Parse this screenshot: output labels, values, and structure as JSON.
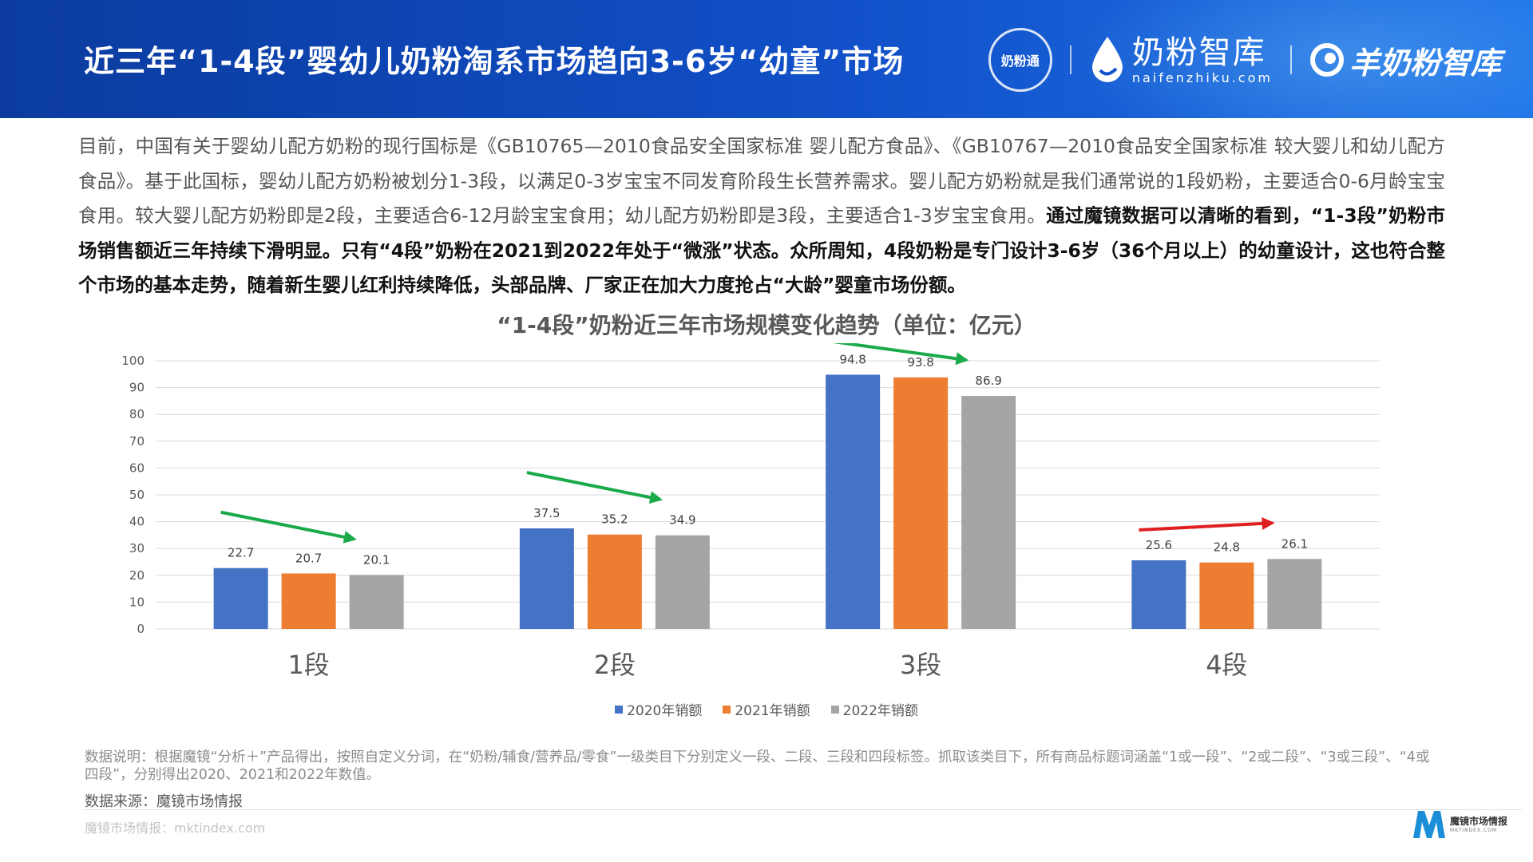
{
  "header": {
    "title": "近三年“1-4段”婴幼儿奶粉淘系市场趋向3-6岁“幼童”市场",
    "logo_seal_text": "奶粉通",
    "logo_brand_cn": "奶粉智库",
    "logo_brand_en": "naifenzhiku.com",
    "logo_sheep_text": "羊奶粉智库"
  },
  "intro": {
    "normal": "目前，中国有关于婴幼儿配方奶粉的现行国标是《GB10765—2010食品安全国家标准 婴儿配方食品》、《GB10767—2010食品安全国家标准 较大婴儿和幼儿配方食品》。基于此国标，婴幼儿配方奶粉被划分1-3段，以满足0-3岁宝宝不同发育阶段生长营养需求。婴儿配方奶粉就是我们通常说的1段奶粉，主要适合0-6月龄宝宝食用。较大婴儿配方奶粉即是2段，主要适合6-12月龄宝宝食用；幼儿配方奶粉即是3段，主要适合1-3岁宝宝食用。",
    "bold": "通过魔镜数据可以清晰的看到，“1-3段”奶粉市场销售额近三年持续下滑明显。只有“4段”奶粉在2021到2022年处于“微涨”状态。众所周知，4段奶粉是专门设计3-6岁（36个月以上）的幼童设计，这也符合整个市场的基本走势，随着新生婴儿红利持续降低，头部品牌、厂家正在加大力度抢占“大龄”婴童市场份额。"
  },
  "chart_data": {
    "type": "bar",
    "title": "“1-4段”奶粉近三年市场规模变化趋势（单位：亿元）",
    "categories": [
      "1段",
      "2段",
      "3段",
      "4段"
    ],
    "series": [
      {
        "name": "2020年销额",
        "values": [
          22.7,
          37.5,
          94.8,
          25.6
        ],
        "color": "#4472C4"
      },
      {
        "name": "2021年销额",
        "values": [
          20.7,
          35.2,
          93.8,
          24.8
        ],
        "color": "#ED7D31"
      },
      {
        "name": "2022年销额",
        "values": [
          20.1,
          34.9,
          86.9,
          26.1
        ],
        "color": "#A5A5A5"
      }
    ],
    "ylim": [
      0,
      100
    ],
    "yticks": [
      0,
      10,
      20,
      30,
      40,
      50,
      60,
      70,
      80,
      90,
      100
    ],
    "grid": true,
    "legend": "bottom",
    "trend_arrows": [
      {
        "category": "1段",
        "direction": "down",
        "color": "#1BAA4A"
      },
      {
        "category": "2段",
        "direction": "down",
        "color": "#1BAA4A"
      },
      {
        "category": "3段",
        "direction": "down",
        "color": "#1BAA4A"
      },
      {
        "category": "4段",
        "direction": "up",
        "color": "#E02020"
      }
    ]
  },
  "notes": {
    "description": "数据说明：根据魔镜“分析＋”产品得出，按照自定义分词，在“奶粉/辅食/营养品/零食”一级类目下分别定义一段、二段、三段和四段标签。抓取该类目下，所有商品标题词涵盖“1或一段”、“2或二段”、“3或三段”、“4或四段”，分别得出2020、2021和2022年数值。",
    "source": "数据来源：魔镜市场情报",
    "footer_url": "魔镜市场情报：mktindex.com",
    "brand_name": "魔镜市场情报",
    "brand_en": "MKTINDEX.COM"
  }
}
